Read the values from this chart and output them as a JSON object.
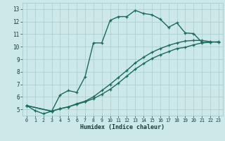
{
  "xlabel": "Humidex (Indice chaleur)",
  "xlim": [
    -0.5,
    23.5
  ],
  "ylim": [
    4.5,
    13.5
  ],
  "xticks": [
    0,
    1,
    2,
    3,
    4,
    5,
    6,
    7,
    8,
    9,
    10,
    11,
    12,
    13,
    14,
    15,
    16,
    17,
    18,
    19,
    20,
    21,
    22,
    23
  ],
  "yticks": [
    5,
    6,
    7,
    8,
    9,
    10,
    11,
    12,
    13
  ],
  "background_color": "#cce8e8",
  "grid_color": "#a8cccc",
  "line_color": "#1a6b5a",
  "line1_x": [
    0,
    1,
    2,
    3,
    4,
    5,
    6,
    7,
    8,
    9,
    10,
    11,
    12,
    13,
    14,
    15,
    16,
    17,
    18,
    19,
    20,
    21,
    22
  ],
  "line1_y": [
    5.3,
    4.9,
    4.65,
    4.85,
    6.15,
    6.5,
    6.35,
    7.6,
    10.3,
    10.3,
    12.1,
    12.4,
    12.4,
    12.9,
    12.65,
    12.55,
    12.2,
    11.55,
    11.9,
    11.1,
    11.05,
    10.35,
    10.35
  ],
  "line2_x": [
    0,
    3,
    4,
    5,
    6,
    7,
    8,
    9,
    10,
    11,
    12,
    13,
    14,
    15,
    16,
    17,
    18,
    19,
    20,
    21,
    22,
    23
  ],
  "line2_y": [
    5.3,
    4.85,
    5.05,
    5.2,
    5.45,
    5.65,
    6.0,
    6.5,
    7.0,
    7.55,
    8.1,
    8.7,
    9.15,
    9.55,
    9.85,
    10.1,
    10.3,
    10.45,
    10.5,
    10.5,
    10.4,
    10.35
  ],
  "line3_x": [
    0,
    3,
    4,
    5,
    6,
    7,
    8,
    9,
    10,
    11,
    12,
    13,
    14,
    15,
    16,
    17,
    18,
    19,
    20,
    21,
    22,
    23
  ],
  "line3_y": [
    5.3,
    4.85,
    5.05,
    5.2,
    5.4,
    5.6,
    5.85,
    6.2,
    6.6,
    7.1,
    7.65,
    8.2,
    8.65,
    9.05,
    9.35,
    9.6,
    9.85,
    9.95,
    10.15,
    10.3,
    10.35,
    10.4
  ],
  "marker": "+",
  "markersize": 3,
  "linewidth": 1.0
}
